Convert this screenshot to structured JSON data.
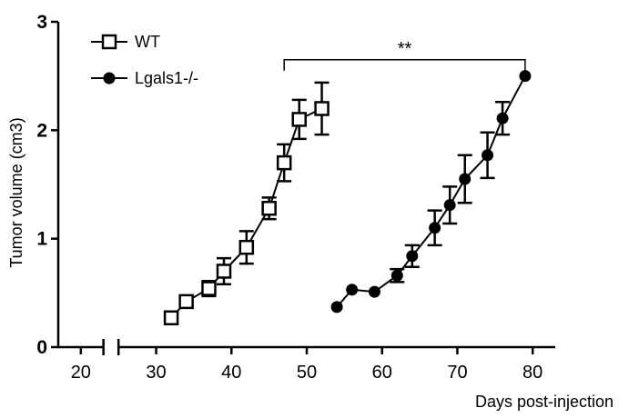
{
  "chart_data": {
    "type": "line",
    "title": "",
    "xlabel": "Days post-injection",
    "ylabel": "Tumor volume (cm3)",
    "xlim": [
      17,
      83
    ],
    "ylim": [
      0,
      3
    ],
    "x_axis_break": [
      23,
      25
    ],
    "x_ticks": [
      20,
      30,
      40,
      50,
      60,
      70,
      80
    ],
    "y_ticks": [
      0,
      1,
      2,
      3
    ],
    "grid": false,
    "legend_position": "top-left",
    "series": [
      {
        "name": "WT",
        "marker": "open-square",
        "color": "#000000",
        "points": [
          {
            "x": 32,
            "y": 0.27,
            "err": 0.05
          },
          {
            "x": 34,
            "y": 0.42,
            "err": 0.04
          },
          {
            "x": 37,
            "y": 0.54,
            "err": 0.07
          },
          {
            "x": 39,
            "y": 0.7,
            "err": 0.12
          },
          {
            "x": 42,
            "y": 0.92,
            "err": 0.15
          },
          {
            "x": 45,
            "y": 1.28,
            "err": 0.1
          },
          {
            "x": 47,
            "y": 1.7,
            "err": 0.17
          },
          {
            "x": 49,
            "y": 2.1,
            "err": 0.18
          },
          {
            "x": 52,
            "y": 2.2,
            "err": 0.24
          }
        ]
      },
      {
        "name": "Lgals1-/-",
        "marker": "filled-circle",
        "color": "#000000",
        "points": [
          {
            "x": 54,
            "y": 0.37,
            "err": 0.0
          },
          {
            "x": 56,
            "y": 0.53,
            "err": 0.0
          },
          {
            "x": 59,
            "y": 0.51,
            "err": 0.0
          },
          {
            "x": 62,
            "y": 0.66,
            "err": 0.06
          },
          {
            "x": 64,
            "y": 0.84,
            "err": 0.1
          },
          {
            "x": 67,
            "y": 1.1,
            "err": 0.16
          },
          {
            "x": 69,
            "y": 1.31,
            "err": 0.17
          },
          {
            "x": 71,
            "y": 1.55,
            "err": 0.22
          },
          {
            "x": 74,
            "y": 1.77,
            "err": 0.21
          },
          {
            "x": 76,
            "y": 2.11,
            "err": 0.15
          },
          {
            "x": 79,
            "y": 2.5,
            "err": 0.0
          }
        ]
      }
    ],
    "annotation": {
      "text": "**",
      "x_start": 47,
      "x_end": 79,
      "y": 2.65
    }
  }
}
